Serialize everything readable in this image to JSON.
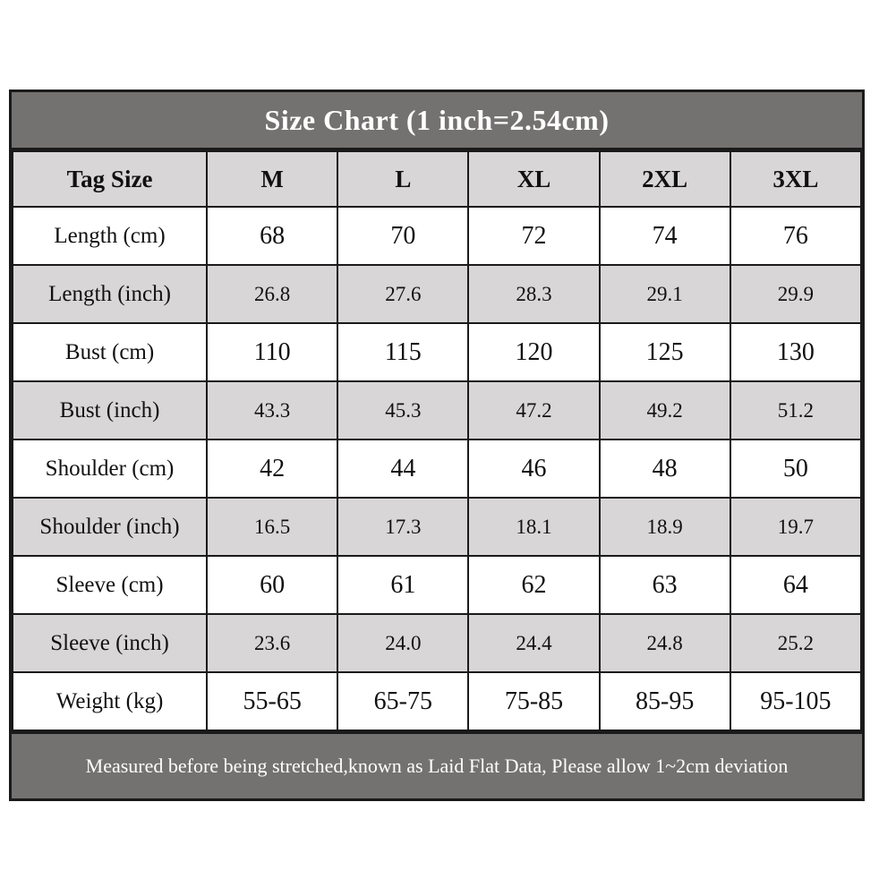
{
  "chart_data": {
    "type": "table",
    "title": "Size Chart (1 inch=2.54cm)",
    "columns": [
      "Tag Size",
      "M",
      "L",
      "XL",
      "2XL",
      "3XL"
    ],
    "rows": [
      {
        "label": "Length (cm)",
        "values": [
          "68",
          "70",
          "72",
          "74",
          "76"
        ]
      },
      {
        "label": "Length (inch)",
        "values": [
          "26.8",
          "27.6",
          "28.3",
          "29.1",
          "29.9"
        ]
      },
      {
        "label": "Bust (cm)",
        "values": [
          "110",
          "115",
          "120",
          "125",
          "130"
        ]
      },
      {
        "label": "Bust (inch)",
        "values": [
          "43.3",
          "45.3",
          "47.2",
          "49.2",
          "51.2"
        ]
      },
      {
        "label": "Shoulder (cm)",
        "values": [
          "42",
          "44",
          "46",
          "48",
          "50"
        ]
      },
      {
        "label": "Shoulder (inch)",
        "values": [
          "16.5",
          "17.3",
          "18.1",
          "18.9",
          "19.7"
        ]
      },
      {
        "label": "Sleeve (cm)",
        "values": [
          "60",
          "61",
          "62",
          "63",
          "64"
        ]
      },
      {
        "label": "Sleeve (inch)",
        "values": [
          "23.6",
          "24.0",
          "24.4",
          "24.8",
          "25.2"
        ]
      },
      {
        "label": "Weight (kg)",
        "values": [
          "55-65",
          "65-75",
          "75-85",
          "85-95",
          "95-105"
        ]
      }
    ],
    "footnote": "Measured before being stretched,known as Laid Flat Data, Please allow 1~2cm deviation"
  },
  "colors": {
    "title_bg": "#747171",
    "title_text": "#ffffff",
    "header_bg": "#d8d6d6",
    "row_bg": "#ffffff",
    "row_alt_bg": "#d8d6d6",
    "border": "#1a1a1a",
    "cell_text": "#111111"
  }
}
